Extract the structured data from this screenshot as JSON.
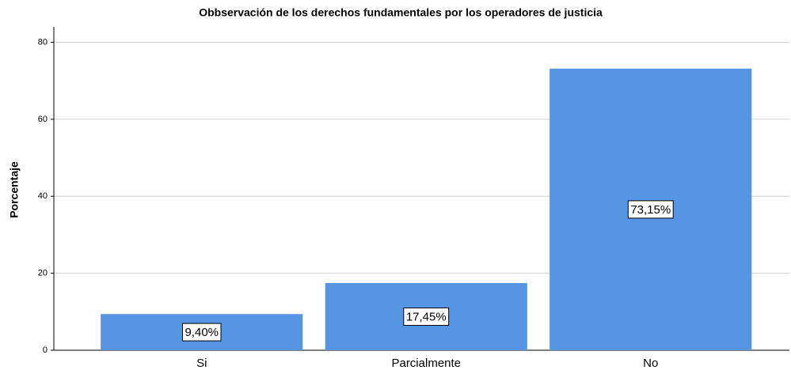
{
  "chart_data": {
    "type": "bar",
    "title": "Obbservación de los derechos fundamentales por los operadores de justicia",
    "ylabel": "Porcentaje",
    "categories": [
      "Si",
      "Parcialmente",
      "No"
    ],
    "values": [
      9.4,
      17.45,
      73.15
    ],
    "value_labels": [
      "9,40%",
      "17,45%",
      "73,15%"
    ],
    "color": "#5595e4",
    "ylim": [
      0,
      84
    ],
    "yticks": [
      0,
      20,
      40,
      60,
      80
    ],
    "grid": true
  }
}
